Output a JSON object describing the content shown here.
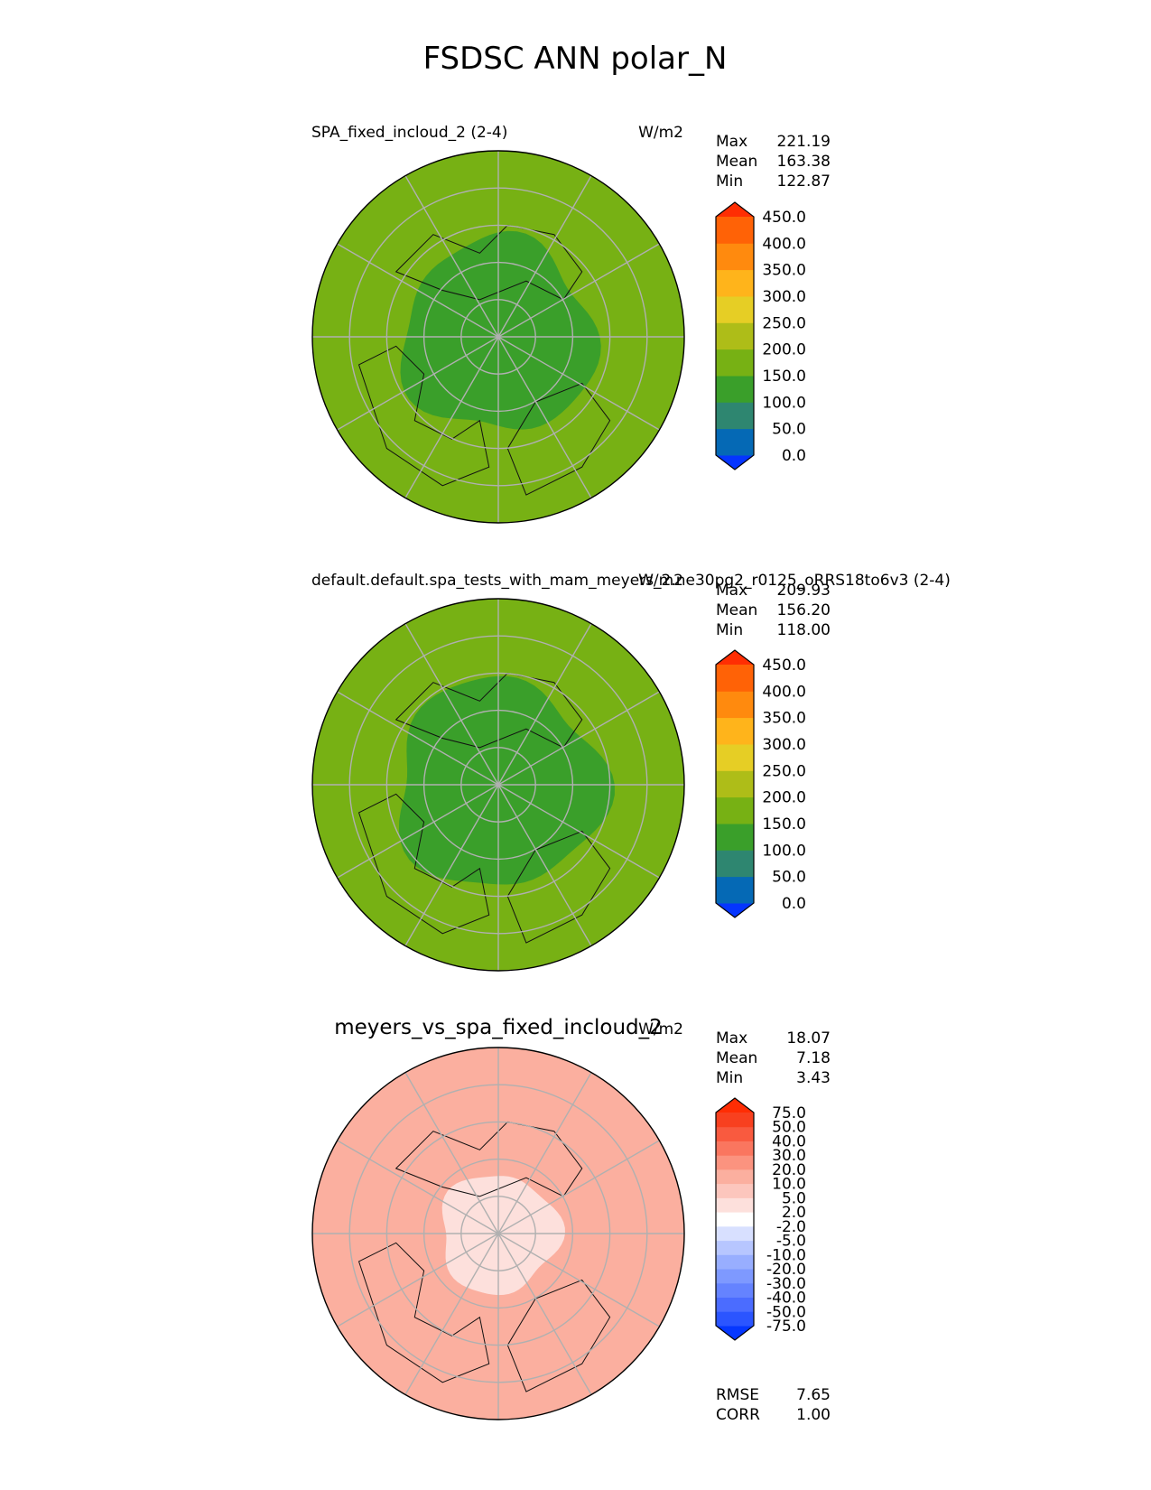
{
  "figure": {
    "title": "FSDSC ANN polar_N"
  },
  "chart_data": [
    {
      "type": "heatmap",
      "projection": "north-polar-stereographic",
      "title_left": "SPA_fixed_incloud_2 (2-4)",
      "title_right": "W/m2",
      "stats": [
        {
          "label": "Max",
          "value": "221.19"
        },
        {
          "label": "Mean",
          "value": "163.38"
        },
        {
          "label": "Min",
          "value": "122.87"
        }
      ],
      "colorbar": {
        "levels": [
          "0.0",
          "50.0",
          "100.0",
          "150.0",
          "200.0",
          "250.0",
          "300.0",
          "350.0",
          "400.0",
          "450.0"
        ],
        "colors": [
          "#0535ff",
          "#0569b5",
          "#2e8670",
          "#3a9f2a",
          "#77b114",
          "#aebd18",
          "#e6ce25",
          "#ffb41b",
          "#ff8a0e",
          "#ff6206",
          "#ff2e03"
        ],
        "extend": "both"
      },
      "field": {
        "outer_value": 175,
        "inner_value": 145,
        "inner_boundary_lat": 64
      }
    },
    {
      "type": "heatmap",
      "projection": "north-polar-stereographic",
      "title_left": "default.default.spa_tests_with_mam_meyers_2.ne30pg2_r0125_oRRS18to6v3 (2-4)",
      "title_right": "W/m2",
      "stats": [
        {
          "label": "Max",
          "value": "209.93"
        },
        {
          "label": "Mean",
          "value": "156.20"
        },
        {
          "label": "Min",
          "value": "118.00"
        }
      ],
      "colorbar": {
        "levels": [
          "0.0",
          "50.0",
          "100.0",
          "150.0",
          "200.0",
          "250.0",
          "300.0",
          "350.0",
          "400.0",
          "450.0"
        ],
        "colors": [
          "#0535ff",
          "#0569b5",
          "#2e8670",
          "#3a9f2a",
          "#77b114",
          "#aebd18",
          "#e6ce25",
          "#ffb41b",
          "#ff8a0e",
          "#ff6206",
          "#ff2e03"
        ],
        "extend": "both"
      },
      "field": {
        "outer_value": 170,
        "inner_value": 140,
        "inner_boundary_lat": 62
      }
    },
    {
      "type": "heatmap",
      "projection": "north-polar-stereographic",
      "title_center": "meyers_vs_spa_fixed_incloud_2",
      "title_right": "W/m2",
      "stats": [
        {
          "label": "Max",
          "value": "18.07"
        },
        {
          "label": "Mean",
          "value": "7.18"
        },
        {
          "label": "Min",
          "value": "3.43"
        }
      ],
      "colorbar": {
        "levels": [
          "-75.0",
          "-50.0",
          "-40.0",
          "-30.0",
          "-20.0",
          "-10.0",
          "-5.0",
          "-2.0",
          "2.0",
          "5.0",
          "10.0",
          "20.0",
          "30.0",
          "40.0",
          "50.0",
          "75.0"
        ],
        "colors": [
          "#0537ff",
          "#2b55ff",
          "#4b6cff",
          "#6583ff",
          "#7e99ff",
          "#98aeff",
          "#b7c6ff",
          "#d8e0ff",
          "#ffffff",
          "#fde0dc",
          "#fcc6bd",
          "#fbaf9f",
          "#fb937f",
          "#fa765f",
          "#f95a3f",
          "#f8401f",
          "#ff2d04"
        ],
        "extend": "both"
      },
      "field": {
        "outer_value": 10,
        "inner_value": 4,
        "inner_boundary_lat": 74
      },
      "bottom_stats": [
        {
          "label": "RMSE",
          "value": "7.65"
        },
        {
          "label": "CORR",
          "value": "1.00"
        }
      ]
    }
  ]
}
